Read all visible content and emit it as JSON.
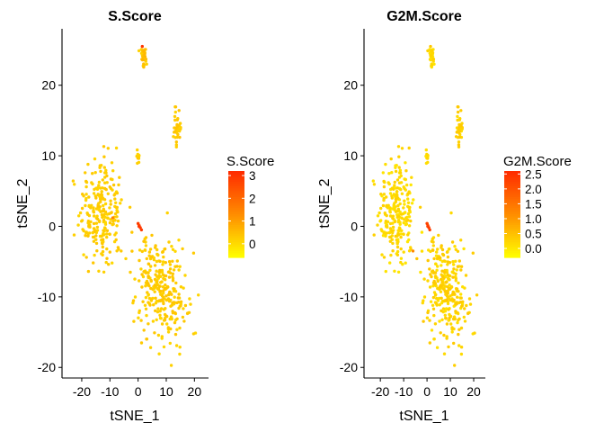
{
  "chart_data": [
    {
      "type": "scatter",
      "title": "S.Score",
      "xlabel": "tSNE_1",
      "ylabel": "tSNE_2",
      "xlim": [
        -27,
        25
      ],
      "ylim": [
        -21.5,
        28
      ],
      "xticks": [
        "-20",
        "-10",
        "0",
        "10",
        "20"
      ],
      "yticks": [
        "-20",
        "-10",
        "0",
        "10",
        "20"
      ],
      "legend": {
        "title": "S.Score",
        "placement": "right",
        "range": [
          -0.6,
          3.2
        ],
        "ticks": [
          "0",
          "1",
          "2",
          "3"
        ]
      },
      "color_scale": [
        "#ffff00",
        "#ff8c00",
        "#ff2a00"
      ],
      "point_color_variable": "S.Score",
      "points": []
    },
    {
      "type": "scatter",
      "title": "G2M.Score",
      "xlabel": "tSNE_1",
      "ylabel": "tSNE_2",
      "xlim": [
        -27,
        25
      ],
      "ylim": [
        -21.5,
        28
      ],
      "xticks": [
        "-20",
        "-10",
        "0",
        "10",
        "20"
      ],
      "yticks": [
        "-20",
        "-10",
        "0",
        "10",
        "20"
      ],
      "legend": {
        "title": "G2M.Score",
        "placement": "right",
        "range": [
          -0.3,
          2.6
        ],
        "ticks": [
          "0.0",
          "0.5",
          "1.0",
          "1.5",
          "2.0",
          "2.5"
        ]
      },
      "color_scale": [
        "#ffff00",
        "#ff8c00",
        "#ff2a00"
      ],
      "point_color_variable": "G2M.Score",
      "points": []
    }
  ]
}
